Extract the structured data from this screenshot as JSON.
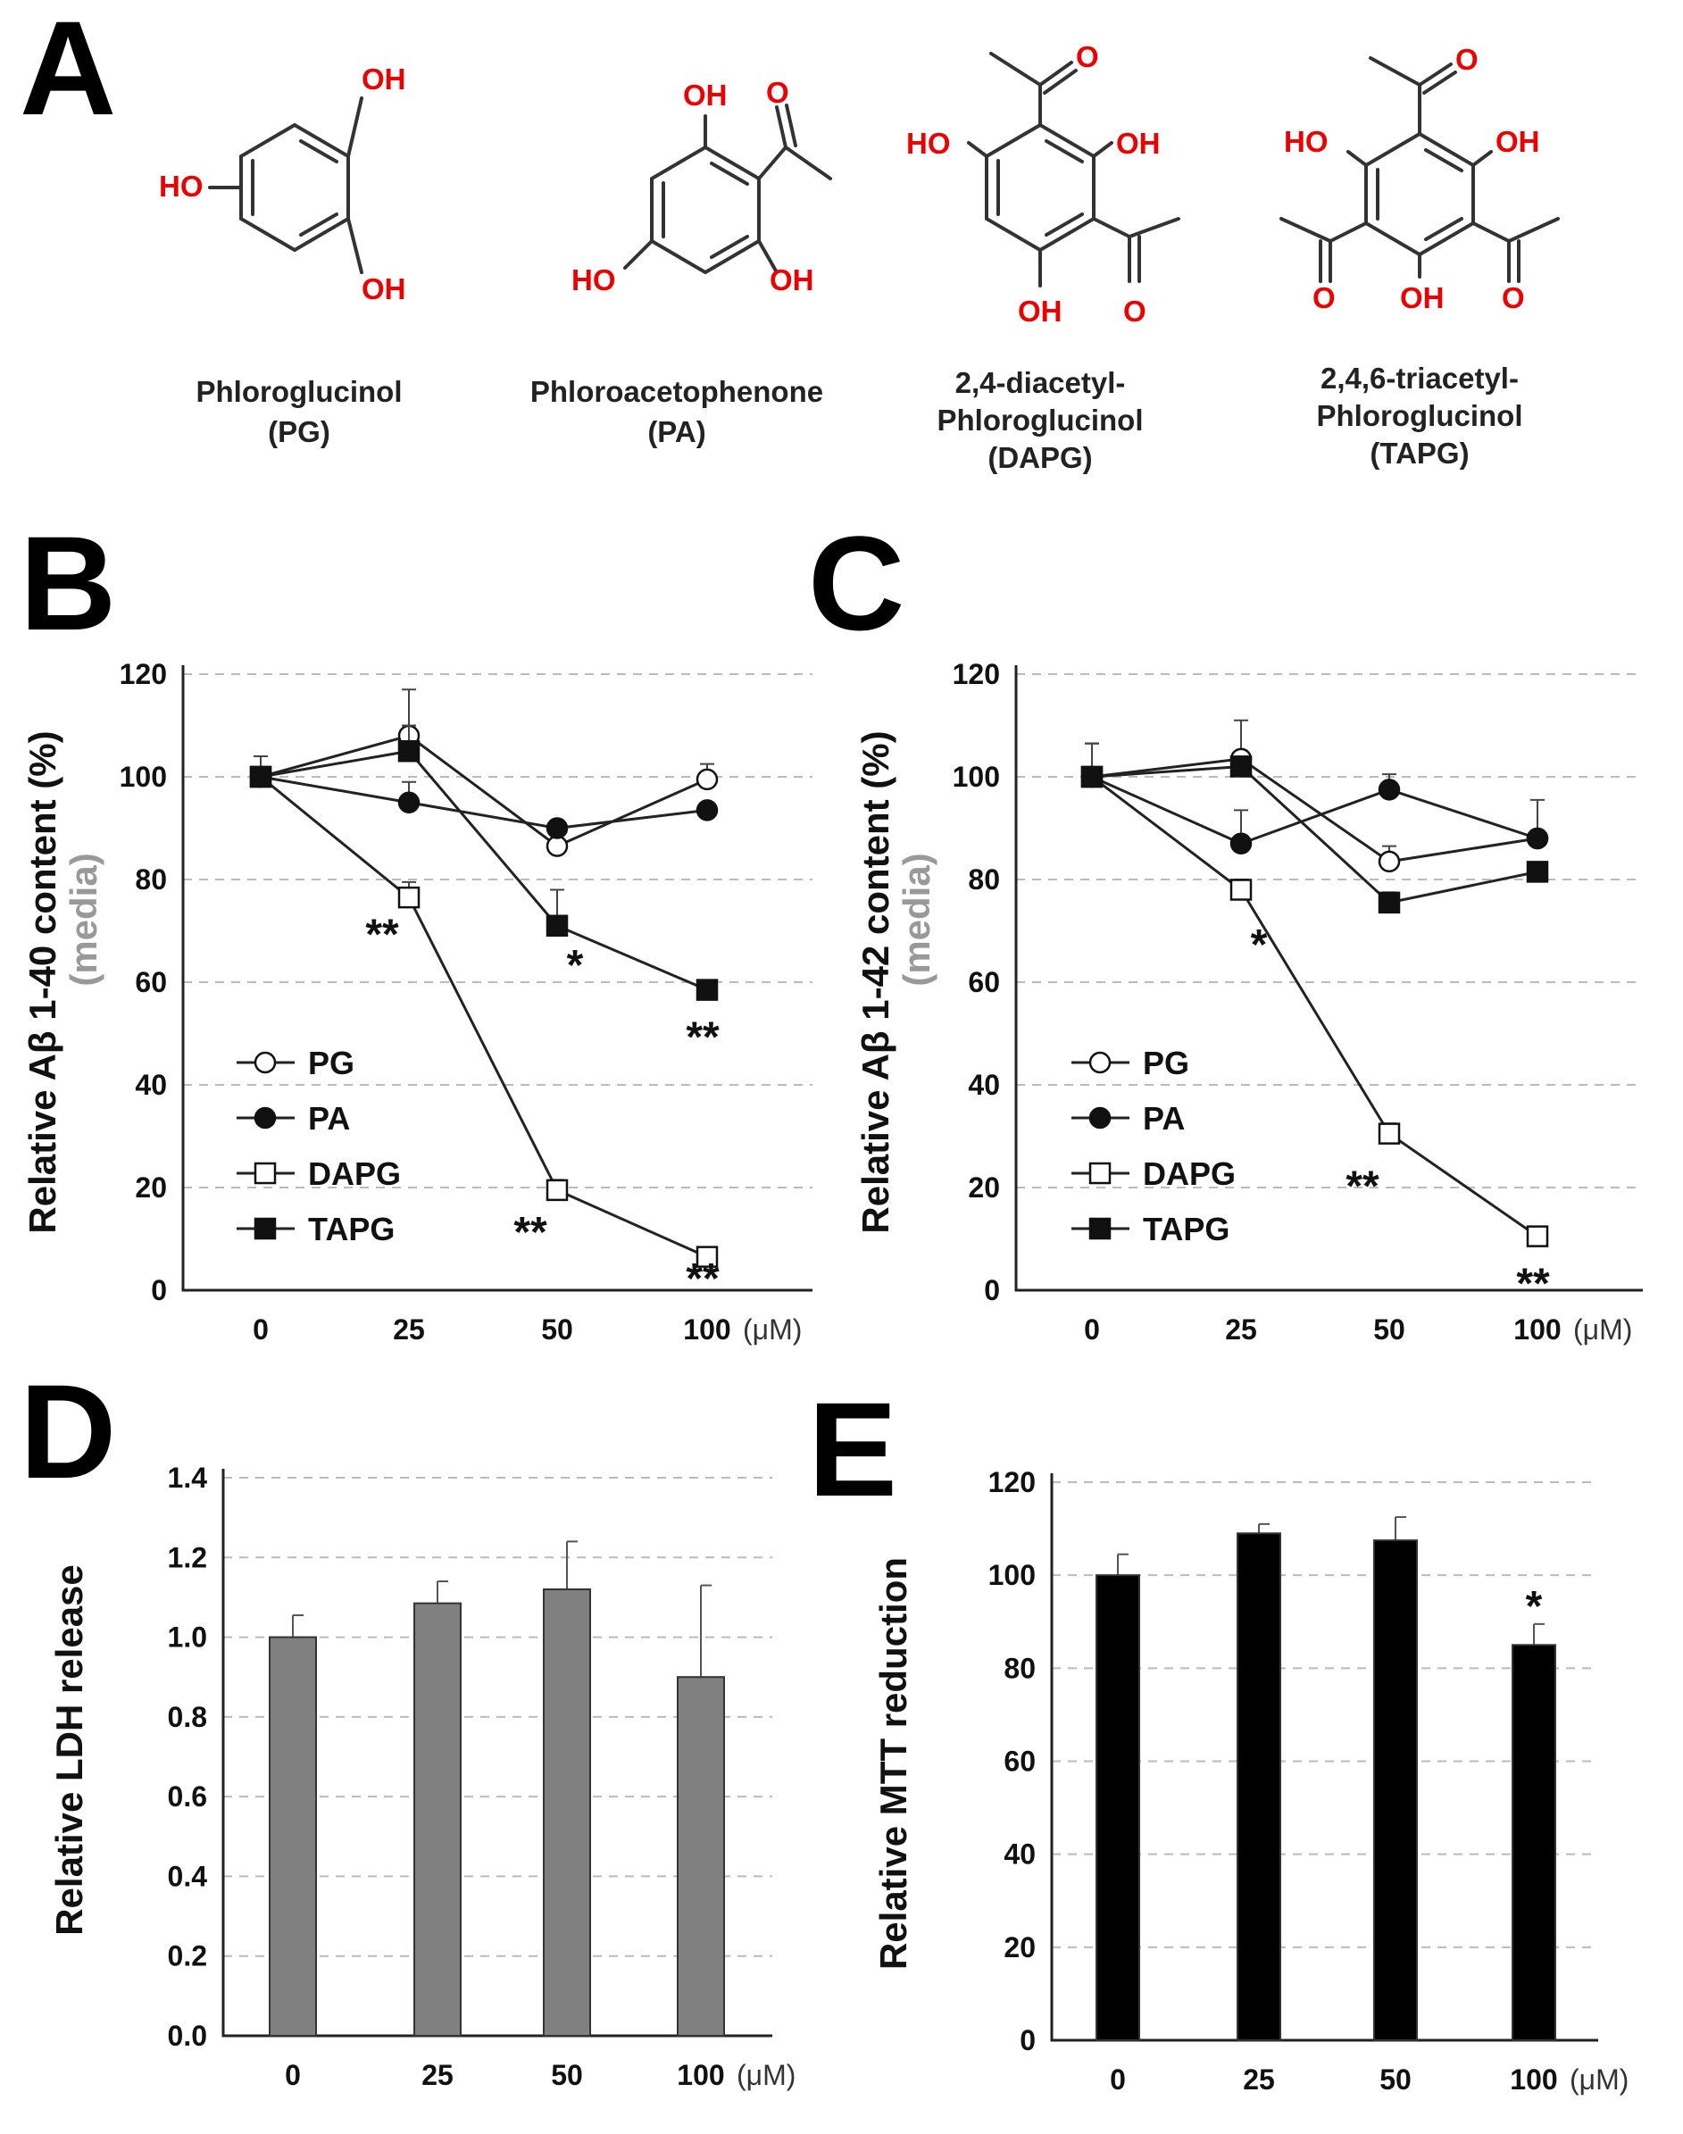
{
  "panels": {
    "A": "A",
    "B": "B",
    "C": "C",
    "D": "D",
    "E": "E"
  },
  "structures": [
    {
      "name_line1": "Phloroglucinol",
      "name_line2": "(PG)"
    },
    {
      "name_line1": "Phloroacetophenone",
      "name_line2": "(PA)"
    },
    {
      "name_line1": "2,4-diacetyl-",
      "name_line2": "Phloroglucinol",
      "name_line3": "(DAPG)"
    },
    {
      "name_line1": "2,4,6-triacetyl-",
      "name_line2": "Phloroglucinol",
      "name_line3": "(TAPG)"
    }
  ],
  "atoms": {
    "oh": "OH",
    "ho": "HO",
    "o": "O"
  },
  "chart_data": [
    {
      "id": "B",
      "type": "line",
      "x": [
        "0",
        "25",
        "50",
        "100"
      ],
      "x_unit": "(μM)",
      "ylabel": "Relative Aβ 1-40 content (%)",
      "ylabel2": "(media)",
      "ylim": [
        0,
        120
      ],
      "yticks": [
        "0",
        "20",
        "40",
        "60",
        "80",
        "100",
        "120"
      ],
      "series": [
        {
          "name": "PG",
          "marker": "circle-open",
          "values": [
            100,
            108,
            86.5,
            99.5
          ],
          "errors": [
            4,
            9,
            1,
            3
          ]
        },
        {
          "name": "PA",
          "marker": "circle-filled",
          "values": [
            100,
            95,
            90,
            93.5
          ],
          "errors": [
            4,
            4,
            1,
            1
          ]
        },
        {
          "name": "DAPG",
          "marker": "square-open",
          "values": [
            100,
            76.5,
            19.5,
            6.5
          ],
          "errors": [
            4,
            3,
            2,
            1
          ]
        },
        {
          "name": "TAPG",
          "marker": "square-filled",
          "values": [
            100,
            105,
            71,
            58.5
          ],
          "errors": [
            4,
            5,
            7,
            1
          ]
        }
      ],
      "annotations": [
        {
          "text": "**",
          "x": "25",
          "y": 70
        },
        {
          "text": "*",
          "x": "50",
          "y": 64
        },
        {
          "text": "**",
          "x": "100",
          "y": 50
        },
        {
          "text": "**",
          "x": "50",
          "y": 12
        },
        {
          "text": "**",
          "x": "100",
          "y": 3
        }
      ]
    },
    {
      "id": "C",
      "type": "line",
      "x": [
        "0",
        "25",
        "50",
        "100"
      ],
      "x_unit": "(μM)",
      "ylabel": "Relative Aβ 1-42 content (%)",
      "ylabel2": "(media)",
      "ylim": [
        0,
        120
      ],
      "yticks": [
        "0",
        "20",
        "40",
        "60",
        "80",
        "100",
        "120"
      ],
      "series": [
        {
          "name": "PG",
          "marker": "circle-open",
          "values": [
            100,
            103.5,
            83.5,
            88
          ],
          "errors": [
            6.5,
            7.5,
            3,
            7.5
          ]
        },
        {
          "name": "PA",
          "marker": "circle-filled",
          "values": [
            100,
            87,
            97.5,
            88
          ],
          "errors": [
            6.5,
            6.5,
            3,
            1
          ]
        },
        {
          "name": "DAPG",
          "marker": "square-open",
          "values": [
            100,
            78,
            30.5,
            10.5
          ],
          "errors": [
            6.5,
            2,
            2,
            1
          ]
        },
        {
          "name": "TAPG",
          "marker": "square-filled",
          "values": [
            100,
            102,
            75.5,
            81.5
          ],
          "errors": [
            6.5,
            2,
            2,
            1
          ]
        }
      ],
      "annotations": [
        {
          "text": "*",
          "x": "25",
          "y": 68
        },
        {
          "text": "**",
          "x": "50",
          "y": 21
        },
        {
          "text": "**",
          "x": "100",
          "y": 2
        }
      ]
    },
    {
      "id": "D",
      "type": "bar",
      "categories": [
        "0",
        "25",
        "50",
        "100"
      ],
      "x_unit": "(μM)",
      "ylabel": "Relative LDH release",
      "ylim": [
        0,
        1.4
      ],
      "yticks": [
        "0.0",
        "0.2",
        "0.4",
        "0.6",
        "0.8",
        "1.0",
        "1.2",
        "1.4"
      ],
      "values": [
        1.0,
        1.085,
        1.12,
        0.9
      ],
      "errors": [
        0.055,
        0.055,
        0.12,
        0.23
      ],
      "color": "#808080"
    },
    {
      "id": "E",
      "type": "bar",
      "categories": [
        "0",
        "25",
        "50",
        "100"
      ],
      "x_unit": "(μM)",
      "ylabel": "Relative MTT reduction",
      "ylim": [
        0,
        120
      ],
      "yticks": [
        "0",
        "20",
        "40",
        "60",
        "80",
        "100",
        "120"
      ],
      "values": [
        100,
        109,
        107.5,
        85
      ],
      "errors": [
        4.5,
        2,
        5,
        4.5
      ],
      "color": "#000000",
      "annotations": [
        {
          "text": "*",
          "x": "100",
          "y": 95
        }
      ]
    }
  ]
}
